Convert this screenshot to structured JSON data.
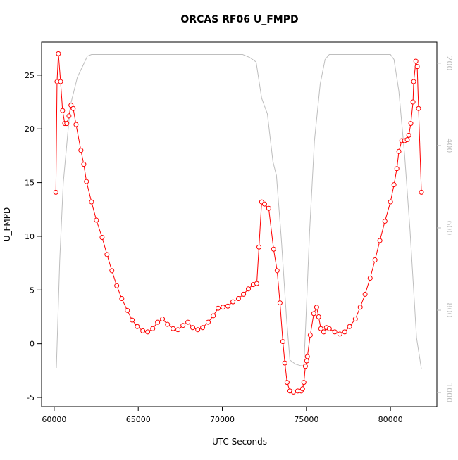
{
  "chart_data": {
    "type": "line",
    "title": "ORCAS RF06 U_FMPD",
    "x_label": "UTC Seconds",
    "y_label": "U_FMPD",
    "xlim": [
      59250,
      82760
    ],
    "xticks": [
      60000,
      65000,
      70000,
      75000,
      80000
    ],
    "ylim": [
      -5.85,
      28.07
    ],
    "yticks": [
      -5,
      0,
      5,
      10,
      15,
      20,
      25
    ],
    "y2lim": [
      1034,
      149
    ],
    "y2ticks": [
      200,
      400,
      600,
      800,
      1000
    ],
    "series": [
      {
        "color": "#ff0000",
        "markers": true,
        "axis": "y",
        "x": [
          60100,
          60170,
          60250,
          60380,
          60500,
          60630,
          60750,
          60880,
          61000,
          61130,
          61300,
          61590,
          61760,
          61920,
          62220,
          62510,
          62850,
          63140,
          63430,
          63720,
          64020,
          64350,
          64640,
          64940,
          65270,
          65560,
          65860,
          66150,
          66440,
          66740,
          67070,
          67360,
          67660,
          67950,
          68240,
          68540,
          68830,
          69160,
          69460,
          69750,
          70040,
          70330,
          70630,
          70960,
          71260,
          71550,
          71840,
          72050,
          72180,
          72340,
          72510,
          72760,
          73050,
          73260,
          73430,
          73600,
          73720,
          73850,
          74020,
          74230,
          74480,
          74690,
          74770,
          74850,
          74940,
          75020,
          75060,
          75230,
          75440,
          75610,
          75730,
          75860,
          76030,
          76190,
          76360,
          76690,
          76990,
          77280,
          77570,
          77910,
          78200,
          78490,
          78790,
          79080,
          79370,
          79670,
          80000,
          80210,
          80380,
          80500,
          80670,
          80840,
          81000,
          81090,
          81210,
          81340,
          81380,
          81510,
          81590,
          81670,
          81840
        ],
        "values": [
          14.1,
          24.4,
          27.0,
          24.4,
          21.7,
          20.5,
          20.5,
          21.2,
          22.2,
          21.9,
          20.4,
          18.0,
          16.7,
          15.1,
          13.2,
          11.5,
          9.9,
          8.3,
          6.8,
          5.4,
          4.2,
          3.1,
          2.2,
          1.6,
          1.2,
          1.1,
          1.4,
          2.0,
          2.3,
          1.8,
          1.4,
          1.3,
          1.7,
          2.0,
          1.5,
          1.3,
          1.5,
          2.0,
          2.6,
          3.3,
          3.4,
          3.5,
          3.9,
          4.2,
          4.6,
          5.1,
          5.5,
          5.6,
          9.0,
          13.2,
          13.0,
          12.6,
          8.8,
          6.8,
          3.8,
          0.2,
          -1.8,
          -3.6,
          -4.4,
          -4.5,
          -4.4,
          -4.4,
          -4.2,
          -3.6,
          -2.1,
          -1.6,
          -1.2,
          0.8,
          2.8,
          3.4,
          2.5,
          1.4,
          1.1,
          1.5,
          1.4,
          1.1,
          0.9,
          1.1,
          1.6,
          2.3,
          3.4,
          4.6,
          6.1,
          7.8,
          9.6,
          11.4,
          13.2,
          14.8,
          16.3,
          17.9,
          18.9,
          18.9,
          19.0,
          19.4,
          20.5,
          22.5,
          24.4,
          26.3,
          25.8,
          21.9,
          14.1
        ]
      },
      {
        "color": "#bebebe",
        "markers": false,
        "axis": "y2",
        "x": [
          60130,
          60330,
          60540,
          60960,
          61380,
          61720,
          61970,
          62220,
          65150,
          71210,
          71630,
          72010,
          72340,
          72680,
          73010,
          73220,
          73510,
          73810,
          74020,
          74350,
          74690,
          74850,
          74980,
          75190,
          75480,
          75820,
          76110,
          76360,
          80000,
          80210,
          80500,
          80840,
          81170,
          81550,
          81840
        ],
        "values": [
          940,
          679,
          491,
          303,
          234,
          205,
          183,
          179,
          179,
          179,
          186,
          197,
          285,
          323,
          439,
          473,
          627,
          815,
          921,
          931,
          935,
          935,
          815,
          610,
          388,
          251,
          191,
          179,
          179,
          191,
          268,
          422,
          610,
          867,
          943
        ]
      }
    ]
  }
}
